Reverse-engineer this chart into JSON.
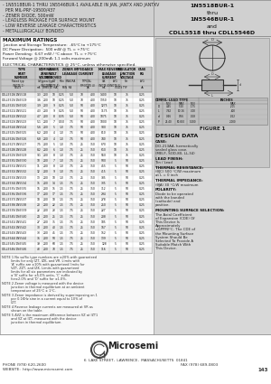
{
  "bg_color": "#c8c8c8",
  "white": "#ffffff",
  "black": "#000000",
  "dark_gray": "#444444",
  "panel_gray": "#d4d4d4",
  "right_panel_gray": "#c0c0c0",
  "title_right_lines": [
    "1N5518BUR-1",
    "thru",
    "1N5546BUR-1",
    "and",
    "CDLL5518 thru CDLL5546D"
  ],
  "title_right_bold": [
    true,
    false,
    true,
    false,
    true
  ],
  "bullet_lines": [
    "- 1N5518BUR-1 THRU 1N5546BUR-1 AVAILABLE IN JAN, JANTX AND JANTXV",
    "  PER MIL-PRF-19500/437",
    "- ZENER DIODE, 500mW",
    "- LEADLESS PACKAGE FOR SURFACE MOUNT",
    "- LOW REVERSE LEAKAGE CHARACTERISTICS",
    "- METALLURGICALLY BONDED"
  ],
  "max_ratings_title": "MAXIMUM RATINGS",
  "max_ratings_lines": [
    "Junction and Storage Temperature:  -65°C to +175°C",
    "DC Power Dissipation:  500 mW @ TL = +75°C",
    "Power Derating:  6.67 mW / °C above  TL = +75°C",
    "Forward Voltage @ 200mA: 1.1 volts maximum"
  ],
  "elec_char_title": "ELECTRICAL CHARACTERISTICS @ 25°C, unless otherwise specified.",
  "table_rows": [
    [
      "CDLL5518/1N5518",
      "3.3",
      "200",
      "10",
      "0.25",
      "5.0",
      "70",
      "400",
      "1400",
      "10",
      "75",
      "0.25"
    ],
    [
      "CDLL5519/1N5519",
      "3.6",
      "200",
      "10",
      "0.25",
      "5.0",
      "70",
      "400",
      "1350",
      "10",
      "75",
      "0.25"
    ],
    [
      "CDLL5520/1N5520",
      "3.9",
      "200",
      "9",
      "0.25",
      "5.0",
      "50",
      "400",
      "1275",
      "10",
      "75",
      "0.25"
    ],
    [
      "CDLL5521/1N5521",
      "4.3",
      "200",
      "9",
      "0.25",
      "5.0",
      "50",
      "400",
      "1175",
      "10",
      "75",
      "0.25"
    ],
    [
      "CDLL5522/1N5522",
      "4.7",
      "200",
      "8",
      "0.35",
      "5.0",
      "50",
      "400",
      "1075",
      "10",
      "75",
      "0.25"
    ],
    [
      "CDLL5523/1N5523",
      "5.1",
      "200",
      "7",
      "0.50",
      "7.5",
      "50",
      "400",
      "1000",
      "10",
      "75",
      "0.25"
    ],
    [
      "CDLL5524/1N5524",
      "5.6",
      "200",
      "5",
      "1.0",
      "7.5",
      "50",
      "400",
      "900",
      "10",
      "75",
      "0.25"
    ],
    [
      "CDLL5525/1N5525",
      "6.2",
      "200",
      "4",
      "1.0",
      "7.5",
      "50",
      "400",
      "810",
      "10",
      "75",
      "0.25"
    ],
    [
      "CDLL5526/1N5526",
      "6.8",
      "200",
      "4",
      "1.0",
      "7.5",
      "50",
      "400",
      "740",
      "10",
      "75",
      "0.25"
    ],
    [
      "CDLL5527/1N5527",
      "7.5",
      "200",
      "5",
      "1.0",
      "7.5",
      "25",
      "350",
      "670",
      "10",
      "75",
      "0.25"
    ],
    [
      "CDLL5528/1N5528",
      "8.2",
      "200",
      "6",
      "1.0",
      "7.5",
      "25",
      "350",
      "610",
      "10",
      "75",
      "0.25"
    ],
    [
      "CDLL5529/1N5529",
      "9.1",
      "200",
      "8",
      "1.0",
      "7.5",
      "25",
      "350",
      "550",
      "10",
      "75",
      "0.25"
    ],
    [
      "CDLL5530/1N5530",
      "10",
      "200",
      "7",
      "1.0",
      "7.5",
      "25",
      "350",
      "500",
      "5",
      "50",
      "0.25"
    ],
    [
      "CDLL5531/1N5531",
      "11",
      "200",
      "8",
      "1.0",
      "7.5",
      "25",
      "350",
      "455",
      "5",
      "50",
      "0.25"
    ],
    [
      "CDLL5532/1N5532",
      "12",
      "200",
      "9",
      "1.0",
      "7.5",
      "25",
      "350",
      "415",
      "5",
      "50",
      "0.25"
    ],
    [
      "CDLL5533/1N5533",
      "13",
      "200",
      "10",
      "1.0",
      "7.5",
      "25",
      "350",
      "385",
      "5",
      "50",
      "0.25"
    ],
    [
      "CDLL5534/1N5534",
      "15",
      "200",
      "14",
      "1.5",
      "7.5",
      "25",
      "350",
      "335",
      "5",
      "50",
      "0.25"
    ],
    [
      "CDLL5535/1N5535",
      "16",
      "200",
      "15",
      "1.5",
      "7.5",
      "25",
      "350",
      "312",
      "5",
      "50",
      "0.25"
    ],
    [
      "CDLL5536/1N5536",
      "17",
      "200",
      "17",
      "1.5",
      "7.5",
      "25",
      "350",
      "294",
      "5",
      "50",
      "0.25"
    ],
    [
      "CDLL5537/1N5537",
      "18",
      "200",
      "18",
      "1.5",
      "7.5",
      "25",
      "350",
      "278",
      "5",
      "50",
      "0.25"
    ],
    [
      "CDLL5538/1N5538",
      "20",
      "200",
      "22",
      "1.5",
      "7.5",
      "25",
      "350",
      "250",
      "5",
      "50",
      "0.25"
    ],
    [
      "CDLL5539/1N5539",
      "22",
      "200",
      "23",
      "1.5",
      "7.5",
      "25",
      "350",
      "227",
      "5",
      "50",
      "0.25"
    ],
    [
      "CDLL5540/1N5540",
      "24",
      "200",
      "25",
      "1.5",
      "7.5",
      "25",
      "350",
      "208",
      "5",
      "50",
      "0.25"
    ],
    [
      "CDLL5541/1N5541",
      "27",
      "200",
      "35",
      "1.5",
      "7.5",
      "25",
      "350",
      "185",
      "5",
      "50",
      "0.25"
    ],
    [
      "CDLL5542/1N5542",
      "30",
      "200",
      "40",
      "1.5",
      "7.5",
      "25",
      "350",
      "167",
      "5",
      "50",
      "0.25"
    ],
    [
      "CDLL5543/1N5543",
      "33",
      "200",
      "45",
      "1.5",
      "7.5",
      "25",
      "350",
      "152",
      "5",
      "50",
      "0.25"
    ],
    [
      "CDLL5544/1N5544",
      "36",
      "200",
      "50",
      "1.5",
      "7.5",
      "25",
      "350",
      "139",
      "5",
      "50",
      "0.25"
    ],
    [
      "CDLL5545/1N5545",
      "39",
      "200",
      "60",
      "1.5",
      "7.5",
      "25",
      "350",
      "128",
      "5",
      "50",
      "0.25"
    ],
    [
      "CDLL5546/1N5546",
      "43",
      "200",
      "70",
      "1.5",
      "7.5",
      "25",
      "350",
      "116",
      "5",
      "50",
      "0.25"
    ]
  ],
  "notes": [
    [
      "NOTE 1",
      "No suffix type numbers are ±20% with guaranteed limits for only IZT, IZK, and VR. Limits with 'A' suffix are ±10% with guaranteed limits for VZT, ZZT, and IZK. Limits with guaranteed limits for all six parameters are indicated by a 'B' suffix for ±5.0% units, 'C' suffix for±2.0% and 'D' suffix for ±1.0%."
    ],
    [
      "NOTE 2",
      "Zener voltage is measured with the device junction in thermal equilibrium at an ambient temperature of 25°C ± 1°C."
    ],
    [
      "NOTE 3",
      "Zener impedance is derived by superimposing on 1 per 0.1KHz sine in a current equal to 10% of IZT."
    ],
    [
      "NOTE 4",
      "Reverse leakage currents are measured at VR as shown on the table."
    ],
    [
      "NOTE 5",
      "ΔVZ is the maximum difference between VZ at IZT1 and VZ at IZT, measured with the device junction in thermal equilibrium."
    ]
  ],
  "design_data_title": "DESIGN DATA",
  "design_data_items": [
    [
      "CASE:",
      "DO-213AA, hermetically sealed glass case. (MELF, SOD-80, LL-34)"
    ],
    [
      "LEAD FINISH:",
      "Tin / Lead"
    ],
    [
      "THERMAL RESISTANCE:",
      "(θJC)  500 °C/W maximum at L = 0 inch"
    ],
    [
      "THERMAL IMPEDANCE:",
      "(θJA)  30 °C/W maximum"
    ],
    [
      "POLARITY:",
      "Diode to be operated with the banded (cathode) end positive."
    ],
    [
      "MOUNTING SURFACE SELECTION:",
      "The Axial Coefficient of Expansion (CDE) Of This Device Is Approximately ±6PPM/°C. The CDE of the Mounting Surface System Should Be Selected To Provide A Suitable Match With This Device."
    ]
  ],
  "figure_label": "FIGURE 1",
  "dim_table": {
    "headers": [
      "DIM",
      "MIL-LEAD TYPE MIN  MAX",
      "INCHES MIN  MAX"
    ],
    "rows": [
      [
        "D",
        "4.45",
        "5.20",
        ".175",
        ".205"
      ],
      [
        "L",
        "7.62",
        "10.16",
        ".300",
        ".400"
      ],
      [
        "d",
        "0.46",
        "0.56",
        ".018",
        ".022"
      ],
      [
        "P",
        "25.40",
        "50.800",
        "1.000",
        "2.000"
      ]
    ]
  },
  "footer_address": "6  LAKE STREET,  LAWRENCE,  MASSACHUSETTS  01841",
  "footer_phone": "PHONE (978) 620-2600",
  "footer_fax": "FAX (978) 689-0803",
  "footer_website": "WEBSITE:  http://www.microsemi.com",
  "footer_page": "143"
}
